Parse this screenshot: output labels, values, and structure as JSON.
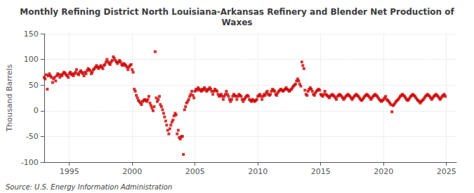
{
  "chart_data": {
    "type": "scatter",
    "title": "Monthly Refining District North Louisiana-Arkansas Refinery and Blender Net Production of\nWaxes",
    "ylabel": "Thousand Barrels",
    "annotation": "Source: U.S. Energy Information Administration",
    "xlim": [
      1993.0,
      2025.8
    ],
    "xticks": [
      1995,
      2000,
      2005,
      2010,
      2015,
      2020,
      2025
    ],
    "ylim": [
      -100,
      150
    ],
    "yticks": [
      -100,
      -50,
      0,
      50,
      100,
      150
    ],
    "grid": true,
    "color": "#cc0000",
    "marker": "square",
    "x": [
      1993.0,
      1993.08,
      1993.17,
      1993.25,
      1993.33,
      1993.42,
      1993.5,
      1993.58,
      1993.67,
      1993.75,
      1993.83,
      1993.92,
      1994.0,
      1994.08,
      1994.17,
      1994.25,
      1994.33,
      1994.42,
      1994.5,
      1994.58,
      1994.67,
      1994.75,
      1994.83,
      1994.92,
      1995.0,
      1995.08,
      1995.17,
      1995.25,
      1995.33,
      1995.42,
      1995.5,
      1995.58,
      1995.67,
      1995.75,
      1995.83,
      1995.92,
      1996.0,
      1996.08,
      1996.17,
      1996.25,
      1996.33,
      1996.42,
      1996.5,
      1996.58,
      1996.67,
      1996.75,
      1996.83,
      1996.92,
      1997.0,
      1997.08,
      1997.17,
      1997.25,
      1997.33,
      1997.42,
      1997.5,
      1997.58,
      1997.67,
      1997.75,
      1997.83,
      1997.92,
      1998.0,
      1998.08,
      1998.17,
      1998.25,
      1998.33,
      1998.42,
      1998.5,
      1998.58,
      1998.67,
      1998.75,
      1998.83,
      1998.92,
      1999.0,
      1999.08,
      1999.17,
      1999.25,
      1999.33,
      1999.42,
      1999.5,
      1999.58,
      1999.67,
      1999.75,
      1999.83,
      1999.92,
      2000.0,
      2000.08,
      2000.17,
      2000.25,
      2000.33,
      2000.42,
      2000.5,
      2000.58,
      2000.67,
      2000.75,
      2000.83,
      2000.92,
      2001.0,
      2001.08,
      2001.17,
      2001.25,
      2001.33,
      2001.42,
      2001.5,
      2001.58,
      2001.67,
      2001.75,
      2001.83,
      2001.92,
      2002.0,
      2002.08,
      2002.17,
      2002.25,
      2002.33,
      2002.42,
      2002.5,
      2002.58,
      2002.67,
      2002.75,
      2002.83,
      2002.92,
      2003.0,
      2003.08,
      2003.17,
      2003.25,
      2003.33,
      2003.42,
      2003.5,
      2003.58,
      2003.67,
      2003.75,
      2003.83,
      2003.92,
      2004.0,
      2004.08,
      2004.17,
      2004.25,
      2004.33,
      2004.42,
      2004.5,
      2004.58,
      2004.67,
      2004.75,
      2004.83,
      2004.92,
      2005.0,
      2005.08,
      2005.17,
      2005.25,
      2005.33,
      2005.42,
      2005.5,
      2005.58,
      2005.67,
      2005.75,
      2005.83,
      2005.92,
      2006.0,
      2006.08,
      2006.17,
      2006.25,
      2006.33,
      2006.42,
      2006.5,
      2006.58,
      2006.67,
      2006.75,
      2006.83,
      2006.92,
      2007.0,
      2007.08,
      2007.17,
      2007.25,
      2007.33,
      2007.42,
      2007.5,
      2007.58,
      2007.67,
      2007.75,
      2007.83,
      2007.92,
      2008.0,
      2008.08,
      2008.17,
      2008.25,
      2008.33,
      2008.42,
      2008.5,
      2008.58,
      2008.67,
      2008.75,
      2008.83,
      2008.92,
      2009.0,
      2009.08,
      2009.17,
      2009.25,
      2009.33,
      2009.42,
      2009.5,
      2009.58,
      2009.67,
      2009.75,
      2009.83,
      2009.92,
      2010.0,
      2010.08,
      2010.17,
      2010.25,
      2010.33,
      2010.42,
      2010.5,
      2010.58,
      2010.67,
      2010.75,
      2010.83,
      2010.92,
      2011.0,
      2011.08,
      2011.17,
      2011.25,
      2011.33,
      2011.42,
      2011.5,
      2011.58,
      2011.67,
      2011.75,
      2011.83,
      2011.92,
      2012.0,
      2012.08,
      2012.17,
      2012.25,
      2012.33,
      2012.42,
      2012.5,
      2012.58,
      2012.67,
      2012.75,
      2012.83,
      2012.92,
      2013.0,
      2013.08,
      2013.17,
      2013.25,
      2013.33,
      2013.42,
      2013.5,
      2013.58,
      2013.67,
      2013.75,
      2013.83,
      2013.92,
      2014.0,
      2014.08,
      2014.17,
      2014.25,
      2014.33,
      2014.42,
      2014.5,
      2014.58,
      2014.67,
      2014.75,
      2014.83,
      2014.92,
      2015.0,
      2015.08,
      2015.17,
      2015.25,
      2015.33,
      2015.42,
      2015.5,
      2015.58,
      2015.67,
      2015.75,
      2015.83,
      2015.92,
      2016.0,
      2016.08,
      2016.17,
      2016.25,
      2016.33,
      2016.42,
      2016.5,
      2016.58,
      2016.67,
      2016.75,
      2016.83,
      2016.92,
      2017.0,
      2017.08,
      2017.17,
      2017.25,
      2017.33,
      2017.42,
      2017.5,
      2017.58,
      2017.67,
      2017.75,
      2017.83,
      2017.92,
      2018.0,
      2018.08,
      2018.17,
      2018.25,
      2018.33,
      2018.42,
      2018.5,
      2018.58,
      2018.67,
      2018.75,
      2018.83,
      2018.92,
      2019.0,
      2019.08,
      2019.17,
      2019.25,
      2019.33,
      2019.42,
      2019.5,
      2019.58,
      2019.67,
      2019.75,
      2019.83,
      2019.92,
      2020.0,
      2020.08,
      2020.17,
      2020.25,
      2020.33,
      2020.42,
      2020.5,
      2020.58,
      2020.67,
      2020.75,
      2020.83,
      2020.92,
      2021.0,
      2021.08,
      2021.17,
      2021.25,
      2021.33,
      2021.42,
      2021.5,
      2021.58,
      2021.67,
      2021.75,
      2021.83,
      2021.92,
      2022.0,
      2022.08,
      2022.17,
      2022.25,
      2022.33,
      2022.42,
      2022.5,
      2022.58,
      2022.67,
      2022.75,
      2022.83,
      2022.92,
      2023.0,
      2023.08,
      2023.17,
      2023.25,
      2023.33,
      2023.42,
      2023.5,
      2023.58,
      2023.67,
      2023.75,
      2023.83,
      2023.92,
      2024.0,
      2024.08,
      2024.17,
      2024.25,
      2024.33,
      2024.42,
      2024.5,
      2024.58,
      2024.67,
      2024.75,
      2024.83,
      2024.92
    ],
    "values": [
      65,
      62,
      70,
      42,
      68,
      72,
      68,
      65,
      55,
      62,
      65,
      58,
      68,
      72,
      70,
      65,
      70,
      68,
      72,
      75,
      73,
      70,
      68,
      65,
      72,
      75,
      70,
      72,
      68,
      72,
      75,
      80,
      72,
      70,
      75,
      78,
      75,
      72,
      68,
      75,
      72,
      78,
      82,
      80,
      78,
      72,
      75,
      80,
      82,
      85,
      88,
      85,
      82,
      85,
      88,
      85,
      82,
      88,
      90,
      95,
      100,
      95,
      92,
      90,
      95,
      98,
      105,
      102,
      98,
      95,
      92,
      95,
      98,
      95,
      90,
      88,
      92,
      90,
      88,
      85,
      80,
      85,
      88,
      90,
      80,
      75,
      42,
      38,
      30,
      25,
      20,
      18,
      15,
      12,
      18,
      20,
      22,
      20,
      18,
      22,
      28,
      15,
      10,
      5,
      0,
      8,
      115,
      25,
      18,
      22,
      28,
      12,
      8,
      2,
      -5,
      -12,
      -20,
      -28,
      -38,
      -45,
      -35,
      -28,
      -22,
      -18,
      -10,
      -5,
      -8,
      -45,
      -38,
      -52,
      -55,
      -50,
      -50,
      -85,
      2,
      8,
      15,
      18,
      22,
      28,
      32,
      38,
      30,
      25,
      38,
      42,
      40,
      45,
      42,
      40,
      38,
      42,
      40,
      45,
      42,
      38,
      40,
      42,
      45,
      42,
      38,
      32,
      38,
      42,
      40,
      38,
      32,
      28,
      30,
      32,
      28,
      22,
      28,
      32,
      38,
      32,
      28,
      22,
      18,
      22,
      28,
      32,
      30,
      28,
      22,
      28,
      32,
      30,
      28,
      22,
      18,
      22,
      25,
      28,
      30,
      28,
      22,
      20,
      18,
      22,
      20,
      18,
      20,
      22,
      28,
      30,
      32,
      28,
      22,
      28,
      32,
      30,
      35,
      38,
      32,
      30,
      32,
      38,
      42,
      40,
      38,
      32,
      30,
      35,
      38,
      40,
      42,
      40,
      38,
      40,
      42,
      45,
      42,
      40,
      38,
      40,
      42,
      45,
      48,
      50,
      52,
      58,
      62,
      58,
      52,
      48,
      95,
      88,
      82,
      40,
      32,
      30,
      38,
      42,
      45,
      42,
      38,
      32,
      30,
      35,
      38,
      40,
      42,
      40,
      32,
      30,
      28,
      32,
      38,
      32,
      30,
      28,
      25,
      28,
      30,
      32,
      30,
      28,
      25,
      22,
      28,
      30,
      32,
      30,
      28,
      25,
      22,
      25,
      28,
      30,
      32,
      30,
      28,
      25,
      22,
      25,
      28,
      30,
      32,
      30,
      28,
      25,
      22,
      20,
      22,
      25,
      28,
      30,
      32,
      30,
      28,
      25,
      22,
      25,
      28,
      30,
      32,
      30,
      28,
      25,
      22,
      20,
      18,
      20,
      22,
      25,
      28,
      22,
      20,
      18,
      15,
      12,
      -2,
      10,
      12,
      15,
      18,
      20,
      22,
      25,
      28,
      30,
      32,
      30,
      28,
      25,
      22,
      20,
      22,
      25,
      28,
      30,
      32,
      30,
      28,
      25,
      22,
      20,
      18,
      15,
      18,
      20,
      22,
      25,
      28,
      30,
      32,
      30,
      28,
      25,
      22,
      25,
      28,
      30,
      32,
      30,
      28,
      25,
      22,
      25,
      28,
      30,
      32,
      28
    ]
  }
}
